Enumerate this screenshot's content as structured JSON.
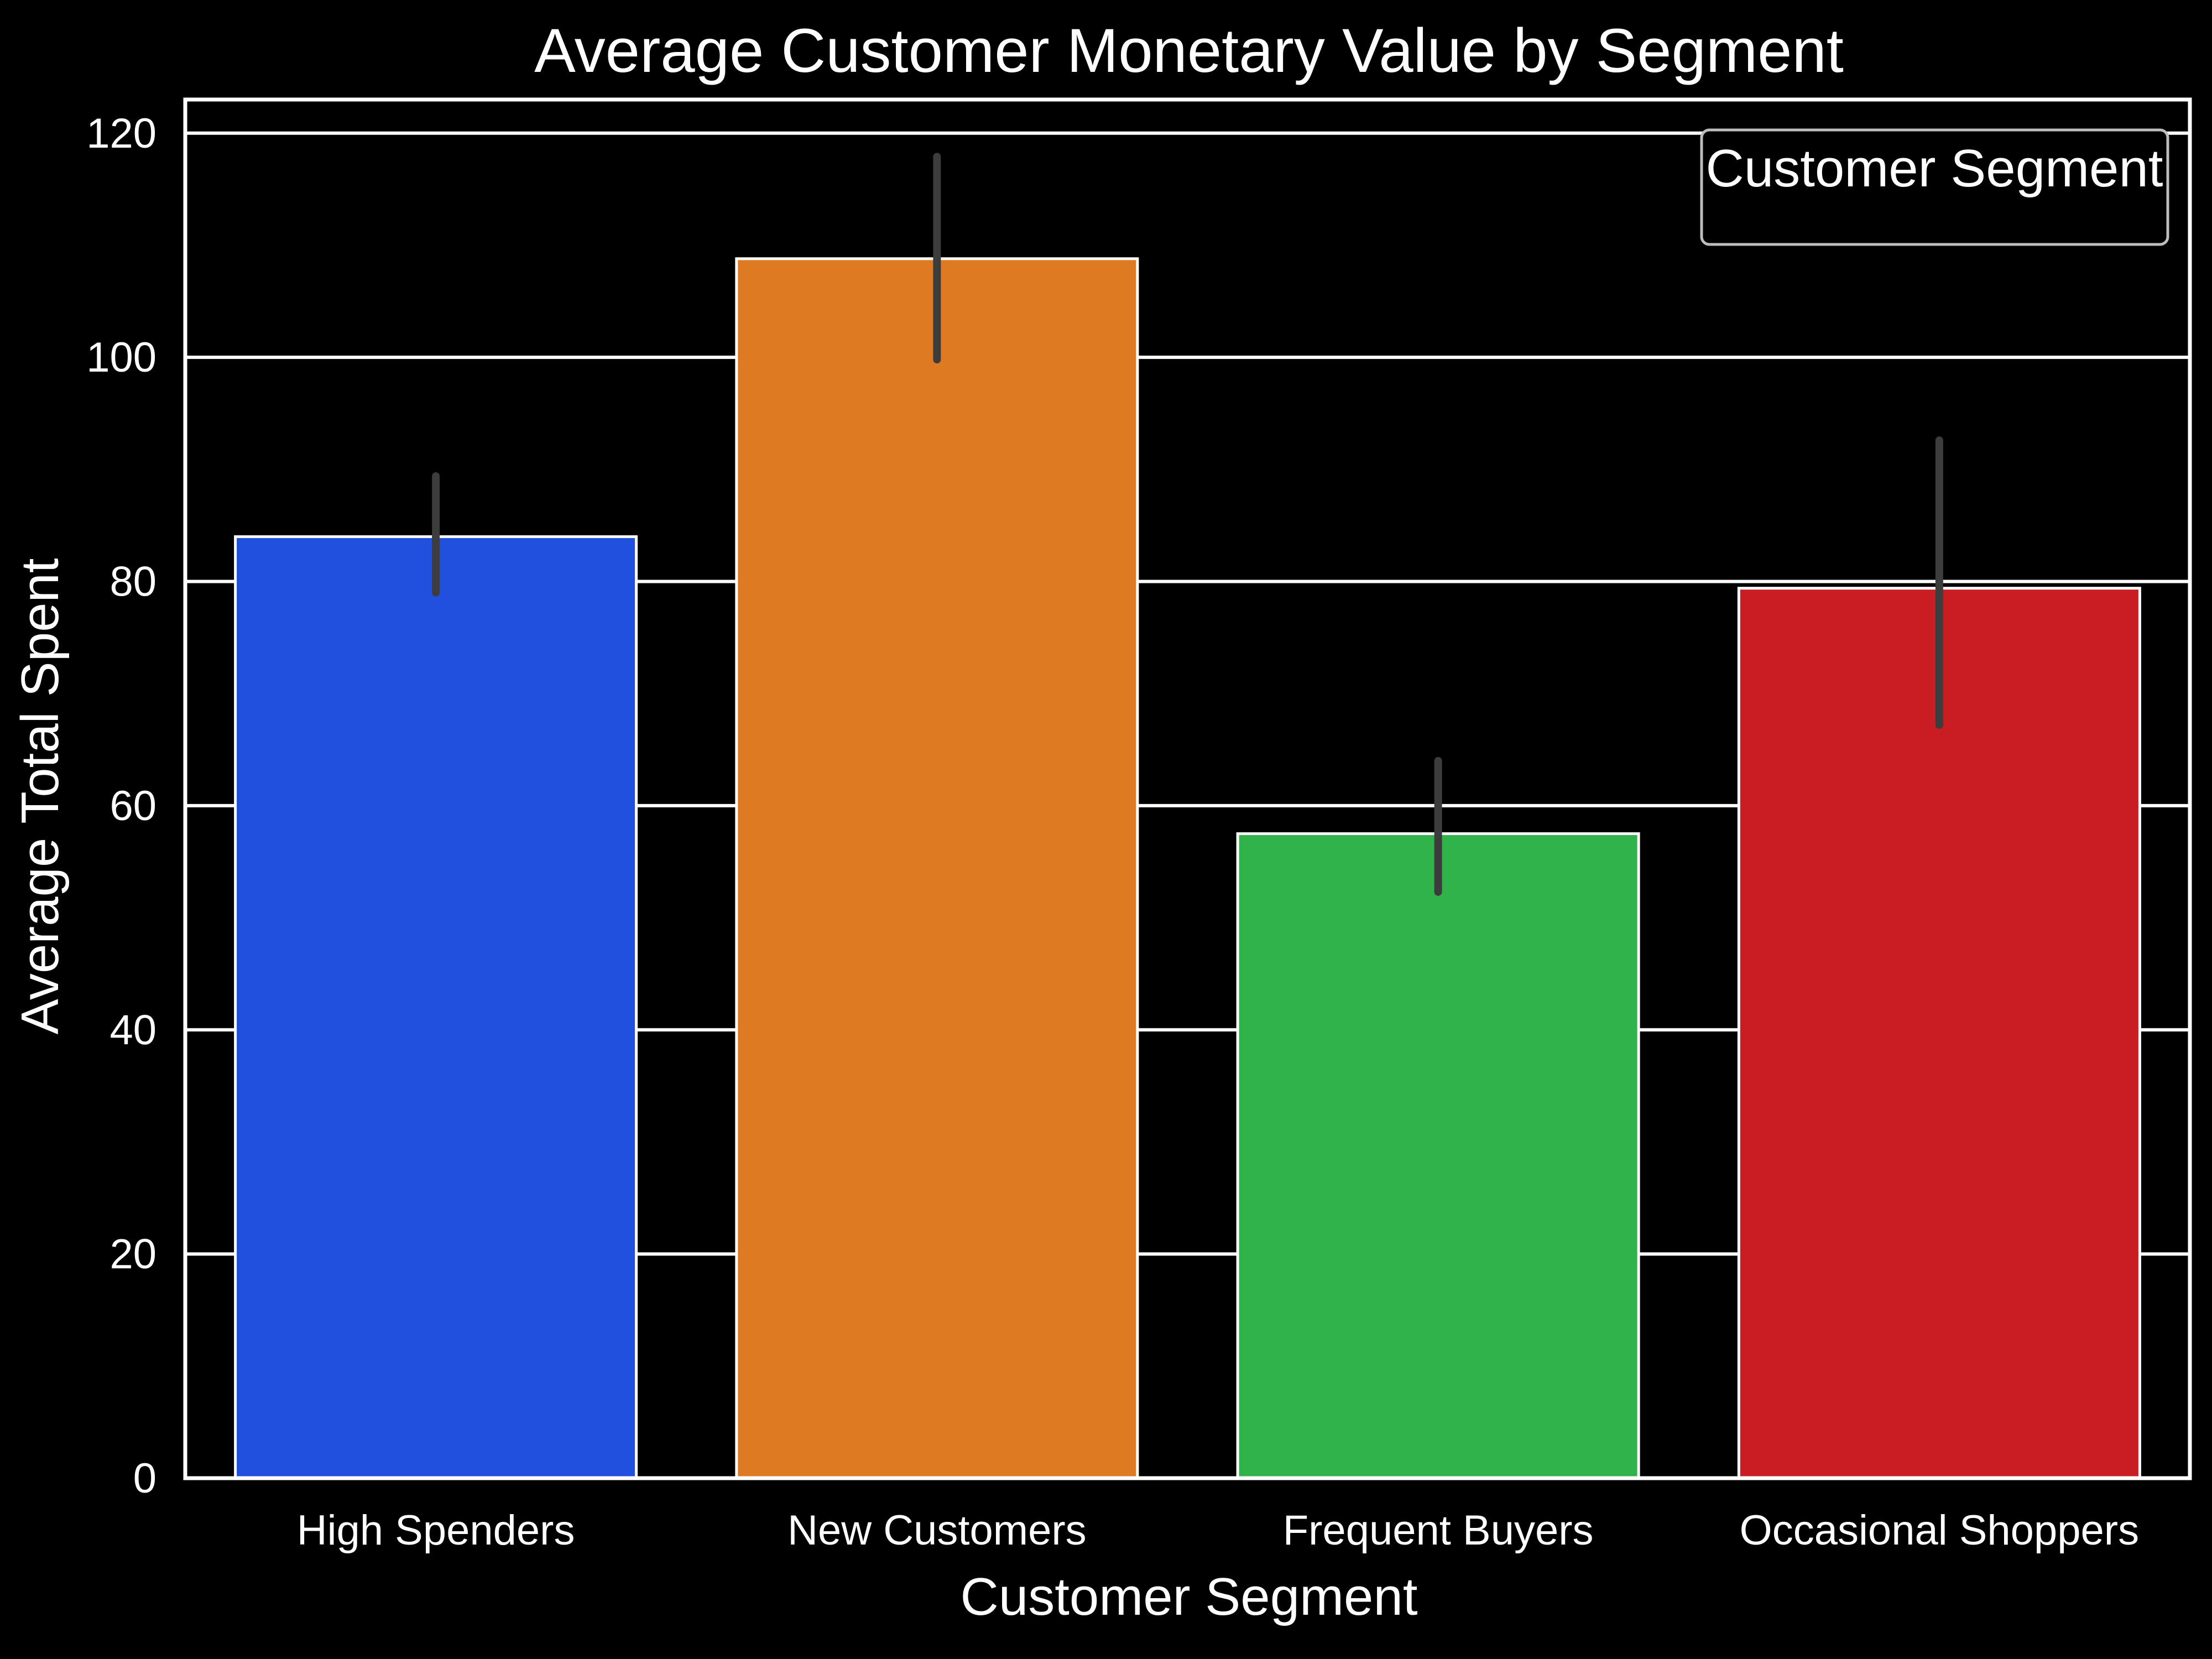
{
  "chart_data": {
    "type": "bar",
    "title": "Average Customer Monetary Value by Segment",
    "xlabel": "Customer Segment",
    "ylabel": "Average Total Spent",
    "categories": [
      "High Spenders",
      "New Customers",
      "Frequent Buyers",
      "Occasional Shoppers"
    ],
    "values": [
      84,
      108.8,
      57.5,
      79.4
    ],
    "error_low": [
      79,
      99.8,
      52.3,
      67.2
    ],
    "error_high": [
      89.4,
      117.9,
      64,
      92.6
    ],
    "ylim": [
      0,
      123
    ],
    "yticks": [
      0,
      20,
      40,
      60,
      80,
      100,
      120
    ],
    "grid": true,
    "legend": {
      "title": "Customer Segment",
      "placement": "top-right"
    },
    "colors": {
      "bars": [
        "#2150DE",
        "#DE7A21",
        "#2FB34A",
        "#C91D24"
      ],
      "background": "#000000",
      "axes": "#FFFFFF",
      "grid": "#FFFFFF",
      "error_bar": "#3C3C3C",
      "legend_border": "#BDBDBD",
      "text": "#FFFFFF"
    }
  }
}
